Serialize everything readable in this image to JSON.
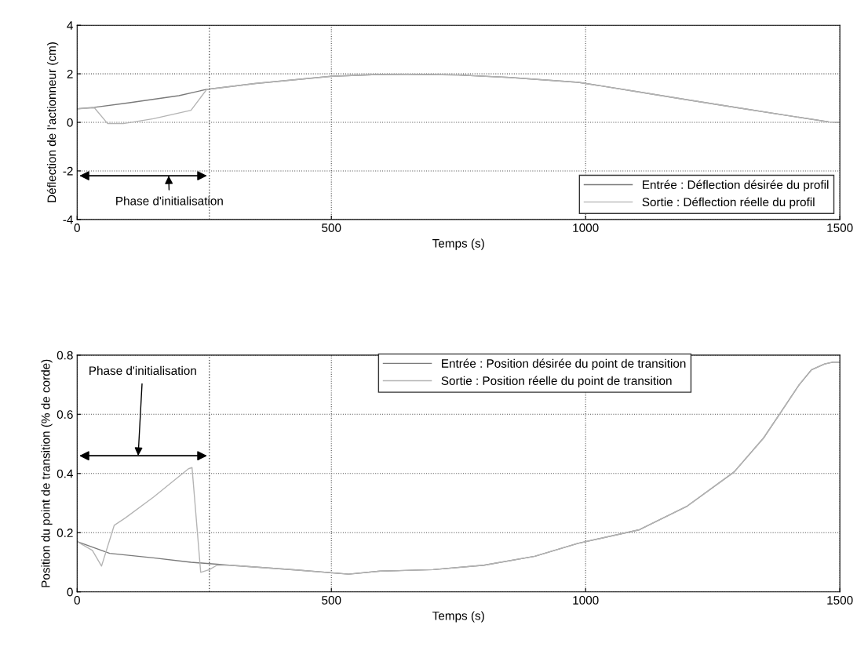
{
  "chart_data": [
    {
      "type": "line",
      "xlabel": "Temps (s)",
      "ylabel": "Déflection de l'actionneur (cm)",
      "xlim": [
        0,
        1500
      ],
      "xticks": [
        0,
        500,
        1000,
        1500
      ],
      "ylim": [
        -4,
        4
      ],
      "yticks": [
        -4,
        -2,
        0,
        2,
        4
      ],
      "grid": true,
      "legend": "bottom right",
      "series": [
        {
          "name": "Entrée : Déflection désirée du profil",
          "color": "#7a7a7a",
          "x": [
            0,
            34,
            100,
            200,
            255,
            350,
            500,
            590,
            650,
            750,
            850,
            986,
            1100,
            1200,
            1300,
            1400,
            1478,
            1500
          ],
          "values": [
            0.56,
            0.62,
            0.8,
            1.1,
            1.36,
            1.6,
            1.9,
            1.97,
            1.98,
            1.95,
            1.85,
            1.65,
            1.27,
            0.93,
            0.6,
            0.27,
            0.02,
            0.0
          ]
        },
        {
          "name": "Sortie : Déflection réelle du profil",
          "color": "#b4b4b4",
          "x": [
            0,
            34,
            60,
            91,
            150,
            224,
            255,
            350,
            500,
            590,
            650,
            750,
            850,
            986,
            1100,
            1200,
            1300,
            1400,
            1478,
            1500
          ],
          "values": [
            0.56,
            0.6,
            -0.05,
            -0.05,
            0.15,
            0.5,
            1.36,
            1.6,
            1.9,
            1.97,
            1.98,
            1.95,
            1.85,
            1.65,
            1.27,
            0.93,
            0.6,
            0.27,
            0.02,
            0.0
          ]
        }
      ],
      "ref_lines": [
        {
          "axis": "x",
          "value": 260,
          "line_style": "dotted"
        }
      ],
      "annotations": [
        "Phase d'initialisation"
      ]
    },
    {
      "type": "line",
      "xlabel": "Temps (s)",
      "ylabel": "Position du point de transition (% de corde)",
      "xlim": [
        0,
        1500
      ],
      "xticks": [
        0,
        500,
        1000,
        1500
      ],
      "ylim": [
        0,
        0.8
      ],
      "yticks": [
        0,
        0.2,
        0.4,
        0.6,
        0.8
      ],
      "grid": true,
      "legend": "top",
      "series": [
        {
          "name": "Entrée : Position désirée du point de transition",
          "color": "#7a7a7a",
          "x": [
            0,
            64,
            150,
            224,
            300,
            430,
            534,
            596,
            700,
            800,
            900,
            985,
            1106,
            1200,
            1292,
            1350,
            1384,
            1420,
            1444,
            1470,
            1486,
            1500
          ],
          "values": [
            0.17,
            0.13,
            0.115,
            0.1,
            0.09,
            0.074,
            0.06,
            0.07,
            0.075,
            0.09,
            0.12,
            0.164,
            0.21,
            0.29,
            0.405,
            0.52,
            0.607,
            0.7,
            0.75,
            0.77,
            0.776,
            0.776
          ]
        },
        {
          "name": "Sortie : Position réelle du point de transition",
          "color": "#b4b4b4",
          "x": [
            0,
            30,
            48,
            73,
            95,
            150,
            219,
            226,
            243,
            260,
            275,
            300,
            430,
            534,
            596,
            700,
            800,
            900,
            985,
            1106,
            1200,
            1292,
            1350,
            1384,
            1420,
            1444,
            1470,
            1486,
            1500
          ],
          "values": [
            0.17,
            0.14,
            0.087,
            0.225,
            0.25,
            0.32,
            0.416,
            0.42,
            0.066,
            0.075,
            0.09,
            0.09,
            0.074,
            0.06,
            0.07,
            0.075,
            0.09,
            0.12,
            0.164,
            0.21,
            0.29,
            0.405,
            0.52,
            0.607,
            0.7,
            0.75,
            0.77,
            0.776,
            0.776
          ]
        }
      ],
      "ref_lines": [
        {
          "axis": "x",
          "value": 260,
          "line_style": "dotted"
        }
      ],
      "annotations": [
        "Phase d'initialisation"
      ]
    }
  ]
}
